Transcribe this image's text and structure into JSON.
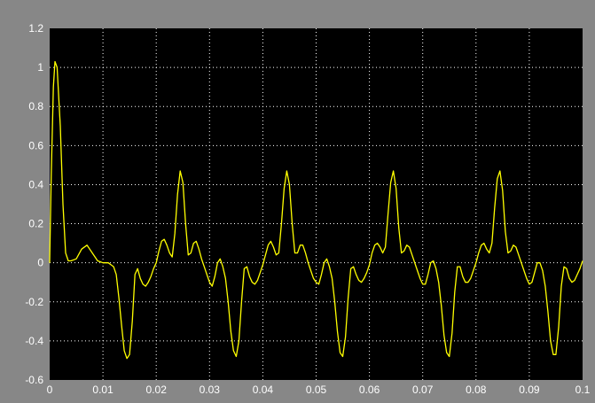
{
  "chart_data": {
    "type": "line",
    "title": "",
    "xlabel": "",
    "ylabel": "",
    "xlim": [
      0,
      0.1
    ],
    "ylim": [
      -0.6,
      1.2
    ],
    "grid": true,
    "x_ticks": [
      "0",
      "0.01",
      "0.02",
      "0.03",
      "0.04",
      "0.05",
      "0.06",
      "0.07",
      "0.08",
      "0.09",
      "0.1"
    ],
    "y_ticks": [
      "1.2",
      "1",
      "0.8",
      "0.6",
      "0.4",
      "0.2",
      "0",
      "-0.2",
      "-0.4",
      "-0.6"
    ],
    "series": [
      {
        "color": "#ffff00",
        "x": [
          0,
          0.0003,
          0.0007,
          0.001,
          0.0014,
          0.002,
          0.0025,
          0.003,
          0.0035,
          0.004,
          0.005,
          0.006,
          0.007,
          0.008,
          0.009,
          0.01,
          0.011,
          0.0115,
          0.012,
          0.0125,
          0.013,
          0.0135,
          0.014,
          0.0145,
          0.015,
          0.0155,
          0.016,
          0.0165,
          0.017,
          0.0175,
          0.018,
          0.0185,
          0.019,
          0.0195,
          0.02,
          0.0205,
          0.021,
          0.0215,
          0.022,
          0.0225,
          0.023,
          0.0235,
          0.024,
          0.0245,
          0.025,
          0.0255,
          0.026,
          0.0265,
          0.027,
          0.0275,
          0.028,
          0.0285,
          0.029,
          0.0295,
          0.03,
          0.0305,
          0.031,
          0.0315,
          0.032,
          0.0325,
          0.033,
          0.0335,
          0.034,
          0.0345,
          0.035,
          0.0355,
          0.036,
          0.0365,
          0.037,
          0.0375,
          0.038,
          0.0385,
          0.039,
          0.0395,
          0.04,
          0.0405,
          0.041,
          0.0415,
          0.042,
          0.0425,
          0.043,
          0.0435,
          0.044,
          0.0445,
          0.045,
          0.0455,
          0.046,
          0.0465,
          0.047,
          0.0475,
          0.048,
          0.0485,
          0.049,
          0.0495,
          0.05,
          0.0505,
          0.051,
          0.0515,
          0.052,
          0.0525,
          0.053,
          0.0535,
          0.054,
          0.0545,
          0.055,
          0.0555,
          0.056,
          0.0565,
          0.057,
          0.0575,
          0.058,
          0.0585,
          0.059,
          0.0595,
          0.06,
          0.0605,
          0.061,
          0.0615,
          0.062,
          0.0625,
          0.063,
          0.0635,
          0.064,
          0.0645,
          0.065,
          0.0655,
          0.066,
          0.0665,
          0.067,
          0.0675,
          0.068,
          0.0685,
          0.069,
          0.0695,
          0.07,
          0.0705,
          0.071,
          0.0715,
          0.072,
          0.0725,
          0.073,
          0.0735,
          0.074,
          0.0745,
          0.075,
          0.0755,
          0.076,
          0.0765,
          0.077,
          0.0775,
          0.078,
          0.0785,
          0.079,
          0.0795,
          0.08,
          0.0805,
          0.081,
          0.0815,
          0.082,
          0.0825,
          0.083,
          0.0835,
          0.084,
          0.0845,
          0.085,
          0.0855,
          0.086,
          0.0865,
          0.087,
          0.0875,
          0.088,
          0.0885,
          0.089,
          0.0895,
          0.09,
          0.0905,
          0.091,
          0.0915,
          0.092,
          0.0925,
          0.093,
          0.0935,
          0.094,
          0.0945,
          0.095,
          0.0955,
          0.096,
          0.0965,
          0.097,
          0.0975,
          0.098,
          0.0985,
          0.099,
          0.0995,
          0.1
        ],
        "y": [
          0.0,
          0.45,
          0.9,
          1.03,
          1.0,
          0.7,
          0.3,
          0.05,
          0.01,
          0.01,
          0.02,
          0.07,
          0.09,
          0.05,
          0.01,
          0.0,
          0.0,
          -0.01,
          -0.02,
          -0.06,
          -0.18,
          -0.32,
          -0.45,
          -0.49,
          -0.47,
          -0.3,
          -0.06,
          -0.03,
          -0.08,
          -0.11,
          -0.12,
          -0.1,
          -0.07,
          -0.03,
          0.0,
          0.06,
          0.11,
          0.12,
          0.09,
          0.05,
          0.03,
          0.15,
          0.35,
          0.47,
          0.41,
          0.2,
          0.04,
          0.05,
          0.1,
          0.11,
          0.07,
          0.02,
          -0.02,
          -0.06,
          -0.1,
          -0.12,
          -0.07,
          0.0,
          0.02,
          -0.02,
          -0.08,
          -0.2,
          -0.35,
          -0.45,
          -0.48,
          -0.4,
          -0.2,
          -0.03,
          -0.02,
          -0.07,
          -0.1,
          -0.11,
          -0.09,
          -0.05,
          -0.01,
          0.04,
          0.09,
          0.11,
          0.08,
          0.04,
          0.05,
          0.2,
          0.38,
          0.47,
          0.4,
          0.2,
          0.05,
          0.05,
          0.09,
          0.09,
          0.05,
          0.0,
          -0.04,
          -0.08,
          -0.1,
          -0.11,
          -0.06,
          0.0,
          0.02,
          -0.02,
          -0.08,
          -0.2,
          -0.35,
          -0.46,
          -0.48,
          -0.38,
          -0.18,
          -0.03,
          -0.02,
          -0.06,
          -0.09,
          -0.1,
          -0.08,
          -0.05,
          -0.01,
          0.05,
          0.09,
          0.1,
          0.08,
          0.05,
          0.08,
          0.25,
          0.41,
          0.47,
          0.38,
          0.18,
          0.05,
          0.06,
          0.09,
          0.08,
          0.04,
          0.0,
          -0.04,
          -0.08,
          -0.11,
          -0.11,
          -0.06,
          0.0,
          0.01,
          -0.03,
          -0.1,
          -0.22,
          -0.37,
          -0.46,
          -0.48,
          -0.36,
          -0.15,
          -0.02,
          -0.02,
          -0.07,
          -0.1,
          -0.1,
          -0.08,
          -0.04,
          0.0,
          0.05,
          0.09,
          0.1,
          0.07,
          0.05,
          0.1,
          0.28,
          0.43,
          0.47,
          0.37,
          0.16,
          0.05,
          0.06,
          0.09,
          0.08,
          0.04,
          0.0,
          -0.04,
          -0.08,
          -0.11,
          -0.1,
          -0.05,
          0.0,
          0.0,
          -0.04,
          -0.12,
          -0.25,
          -0.4,
          -0.47,
          -0.47,
          -0.33,
          -0.12,
          -0.02,
          -0.03,
          -0.08,
          -0.1,
          -0.09,
          -0.06,
          -0.03,
          0.01
        ]
      }
    ]
  },
  "colors": {
    "frame": "#878787",
    "plot_background": "#000000",
    "grid": "#ffffff",
    "trace": "#ffff00",
    "tick_text": "#ffffff"
  }
}
